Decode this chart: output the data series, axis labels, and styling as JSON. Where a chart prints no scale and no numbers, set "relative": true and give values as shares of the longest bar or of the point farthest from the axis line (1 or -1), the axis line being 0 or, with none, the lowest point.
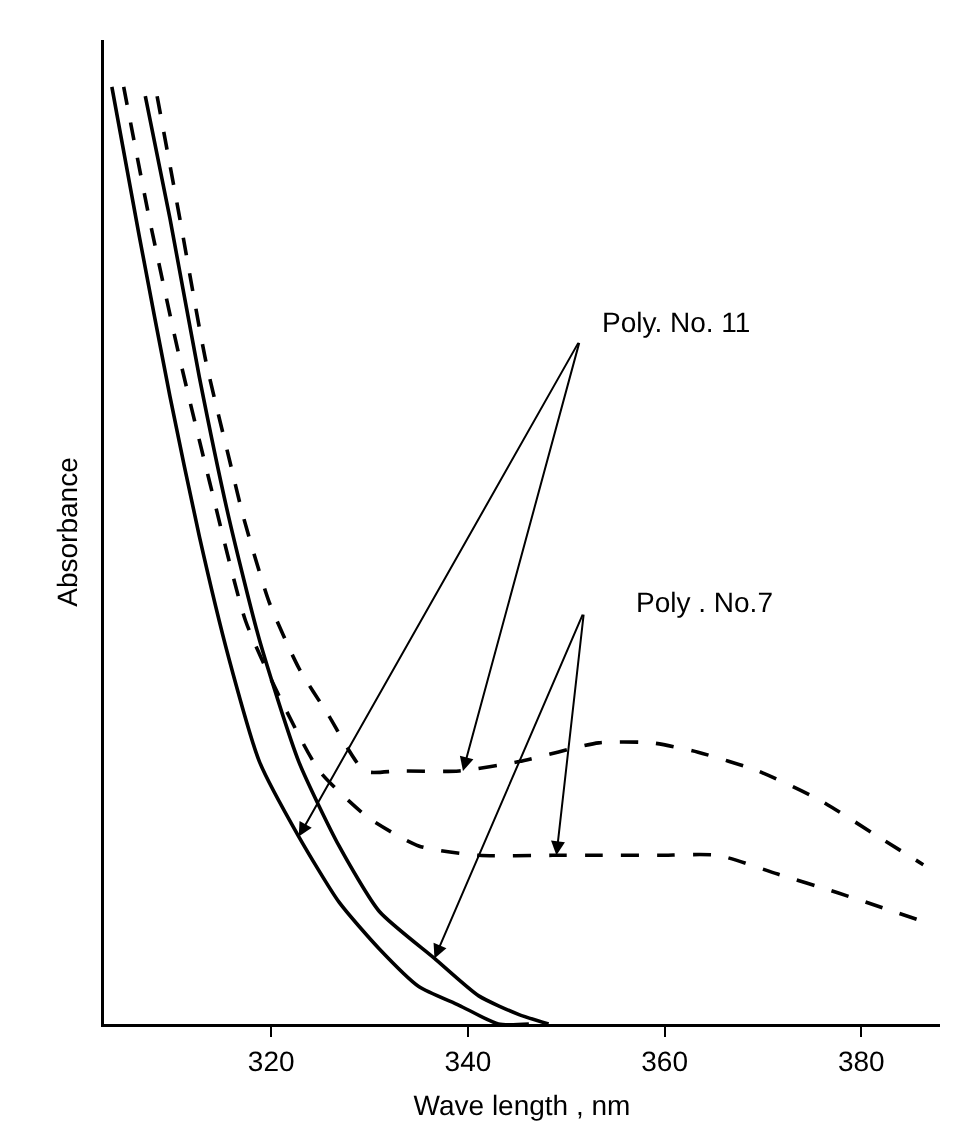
{
  "chart_data": {
    "type": "line",
    "relative": true,
    "xlabel": "Wave length , nm",
    "ylabel": "Absorbance",
    "xlim": [
      303,
      388
    ],
    "xticks": [
      320,
      340,
      360,
      380
    ],
    "grid": false,
    "marker": "none",
    "annotations": [
      "Poly. No. 11",
      "Poly . No.7"
    ],
    "series": [
      {
        "color": "#000000",
        "line_style": "solid",
        "x": [
          303.8,
          306.6,
          309.7,
          312.7,
          315.7,
          318.8,
          322.8,
          326.9,
          331.0,
          335.0,
          339.1,
          343.1,
          346.2
        ],
        "values": [
          1.0,
          0.84,
          0.67,
          0.52,
          0.39,
          0.28,
          0.2,
          0.13,
          0.08,
          0.04,
          0.02,
          0.0,
          0.0
        ]
      },
      {
        "color": "#000000",
        "line_style": "solid",
        "x": [
          307.2,
          309.7,
          312.7,
          315.7,
          318.8,
          322.8,
          326.9,
          331.0,
          336.6,
          341.1,
          345.2,
          348.2
        ],
        "values": [
          0.99,
          0.86,
          0.69,
          0.54,
          0.41,
          0.28,
          0.19,
          0.12,
          0.07,
          0.03,
          0.01,
          0.0
        ]
      },
      {
        "color": "#000000",
        "line_style": "dashed",
        "x": [
          308.4,
          310.7,
          313.3,
          315.8,
          317.2,
          319.8,
          322.8,
          325.8,
          329.5,
          332.9,
          339.1,
          345.2,
          353.3,
          358.7,
          363.4,
          369.5,
          375.6,
          381.7,
          386.3
        ],
        "values": [
          0.99,
          0.86,
          0.71,
          0.6,
          0.54,
          0.45,
          0.38,
          0.33,
          0.27,
          0.27,
          0.27,
          0.28,
          0.3,
          0.3,
          0.29,
          0.27,
          0.24,
          0.2,
          0.17
        ]
      },
      {
        "color": "#000000",
        "line_style": "dashed",
        "x": [
          305.0,
          307.6,
          310.7,
          313.7,
          317.4,
          320.8,
          324.9,
          329.9,
          335.0,
          341.1,
          348.6,
          353.3,
          359.4,
          365.4,
          371.5,
          377.6,
          386.1
        ],
        "values": [
          1.0,
          0.86,
          0.71,
          0.58,
          0.43,
          0.35,
          0.27,
          0.22,
          0.19,
          0.18,
          0.18,
          0.18,
          0.18,
          0.18,
          0.16,
          0.14,
          0.11
        ]
      }
    ]
  }
}
